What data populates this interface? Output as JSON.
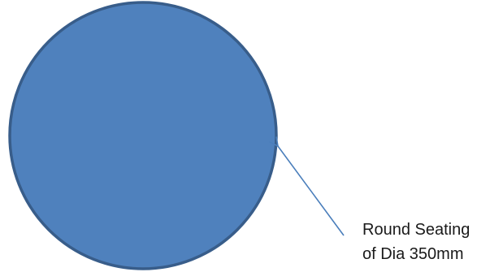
{
  "diagram": {
    "shape": "circle",
    "colors": {
      "fill": "#4f81bd",
      "outline": "#385d8a",
      "arrow": "#4a7ebb",
      "text": "#1a1a1a"
    },
    "annotation": {
      "line1": "Round Seating",
      "line2": "of Dia 350mm"
    }
  }
}
